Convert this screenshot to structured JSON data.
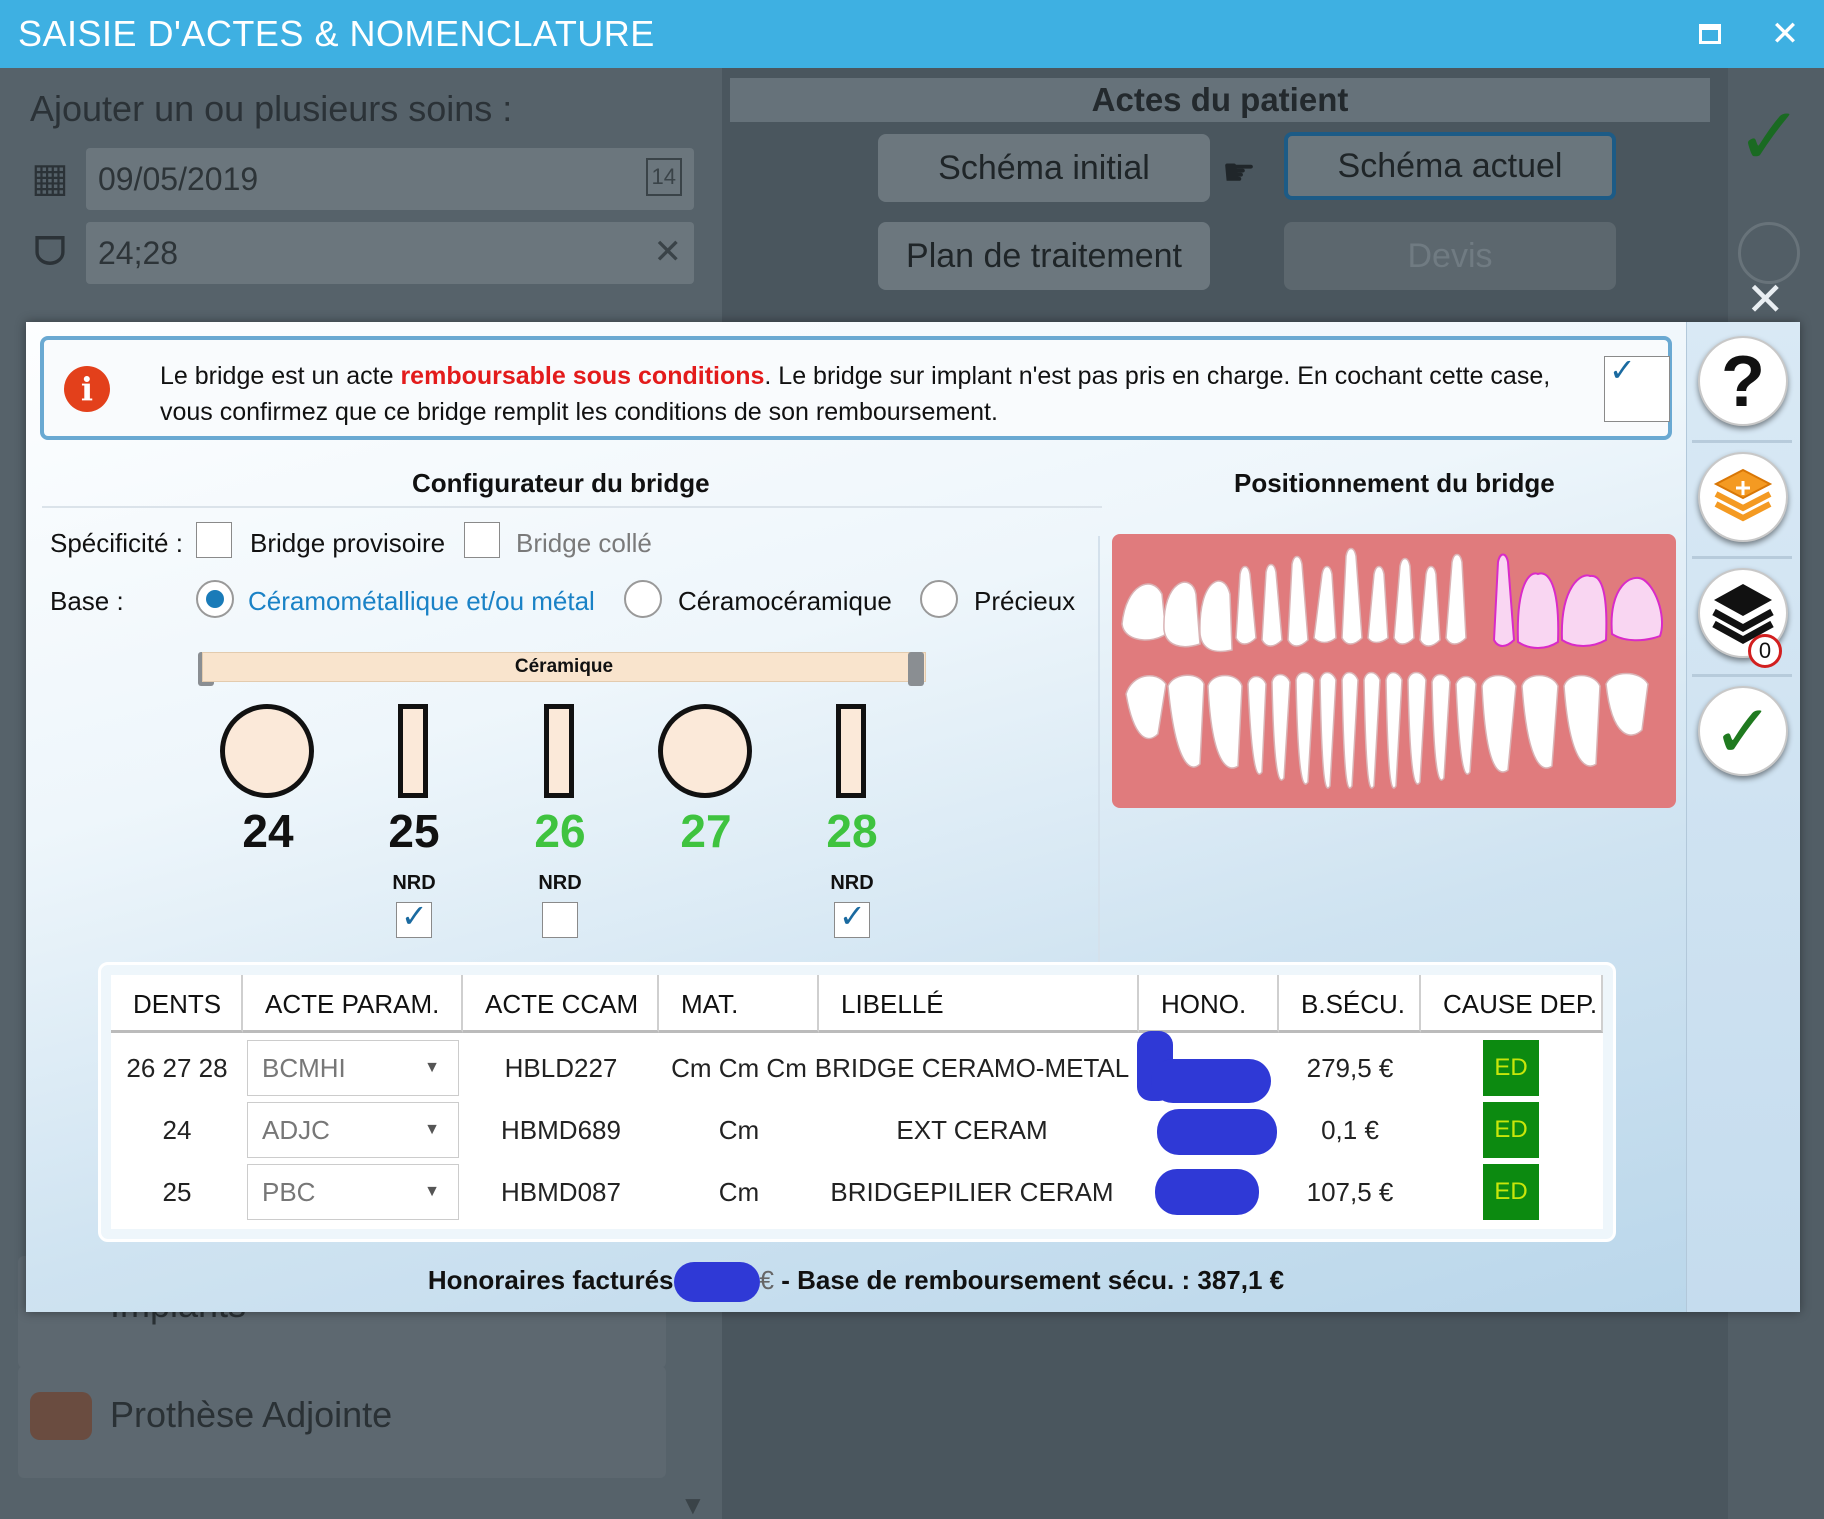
{
  "window": {
    "title": "SAISIE D'ACTES & NOMENCLATURE"
  },
  "background": {
    "heading": "Ajouter un ou plusieurs soins :",
    "date": "09/05/2019",
    "date_day": "14",
    "teeth": "24;28",
    "panel_title": "Actes du patient",
    "btn_initial": "Schéma initial",
    "btn_actuel": "Schéma actuel",
    "btn_plan": "Plan de traitement",
    "btn_devis": "Devis",
    "list_label_1": "Implants",
    "list_label_2": "Prothèse Adjointe"
  },
  "info": {
    "text_1": "Le bridge est un acte ",
    "text_red": "remboursable sous conditions",
    "text_2": ". Le bridge sur implant n'est pas pris en charge. En cochant cette case, vous confirmez que ce bridge remplit les conditions de son remboursement.",
    "checked": true
  },
  "config": {
    "title": "Configurateur du bridge",
    "specificite_label": "Spécificité :",
    "opt_provisoire": "Bridge provisoire",
    "opt_colle": "Bridge collé",
    "base_label": "Base :",
    "base_options": [
      "Céramométallique et/ou métal",
      "Céramocéramique",
      "Précieux"
    ],
    "base_selected": "Céramométallique et/ou métal",
    "slider_label": "Céramique",
    "teeth": [
      {
        "num": "24",
        "shape": "round",
        "color": "black"
      },
      {
        "num": "25",
        "shape": "rect",
        "color": "black",
        "nrd": "NRD",
        "nrd_checked": true
      },
      {
        "num": "26",
        "shape": "rect",
        "color": "green",
        "nrd": "NRD",
        "nrd_checked": false
      },
      {
        "num": "27",
        "shape": "round",
        "color": "green"
      },
      {
        "num": "28",
        "shape": "rect",
        "color": "green",
        "nrd": "NRD",
        "nrd_checked": true
      }
    ]
  },
  "position": {
    "title": "Positionnement du bridge"
  },
  "table": {
    "headers": [
      "DENTS",
      "ACTE PARAM.",
      "ACTE CCAM",
      "MAT.",
      "LIBELLÉ",
      "HONO.",
      "B.SÉCU.",
      "CAUSE DEP."
    ],
    "rows": [
      {
        "dents": "26 27 28",
        "param": "BCMHI",
        "ccam": "HBLD227",
        "mat": "Cm Cm Cm",
        "libelle": "BRIDGE CERAMO-METAL",
        "bsecu": "279,5 €",
        "cause": "ED"
      },
      {
        "dents": "24",
        "param": "ADJC",
        "ccam": "HBMD689",
        "mat": "Cm",
        "libelle": "EXT CERAM",
        "bsecu": "0,1 €",
        "cause": "ED"
      },
      {
        "dents": "25",
        "param": "PBC",
        "ccam": "HBMD087",
        "mat": "Cm",
        "libelle": "BRIDGEPILIER CERAM",
        "bsecu": "107,5 €",
        "cause": "ED"
      }
    ]
  },
  "footer": {
    "label": "Honoraires facturés",
    "currency": "€",
    "base": " - Base de remboursement sécu. : 387,1 €"
  },
  "rail": {
    "badge_count": "0"
  },
  "colors": {
    "titlebar": "#3eb0e2",
    "accent": "#1a82c6",
    "green_num": "#3fc33f",
    "ed_bg": "#0c8a10",
    "ed_text": "#c8e60a",
    "alert_red": "#e31b1b"
  }
}
